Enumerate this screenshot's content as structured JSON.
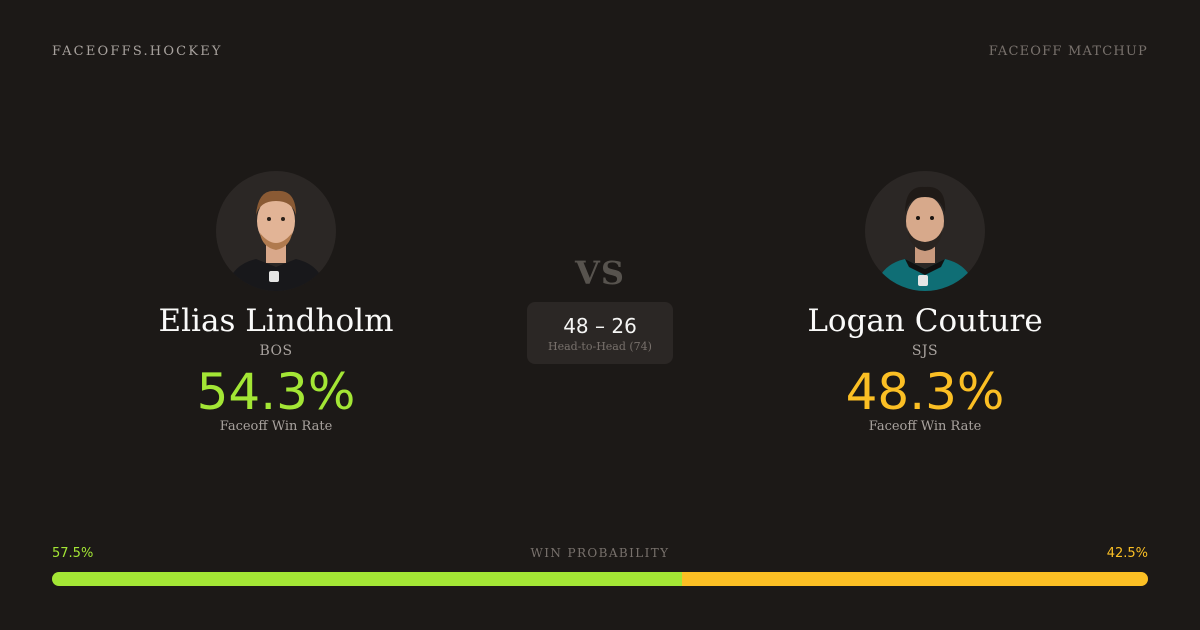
{
  "brand": "FACEOFFS.HOCKEY",
  "page_label": "FACEOFF MATCHUP",
  "vs_label": "VS",
  "player_a": {
    "name": "Elias Lindholm",
    "team": "BOS",
    "win_rate": "54.3%",
    "win_rate_label": "Faceoff Win Rate",
    "jersey_color": "#18181b",
    "accent": "#a3e635"
  },
  "player_b": {
    "name": "Logan Couture",
    "team": "SJS",
    "win_rate": "48.3%",
    "win_rate_label": "Faceoff Win Rate",
    "jersey_color": "#0f6e75",
    "accent": "#fbbf24"
  },
  "head_to_head": {
    "score": "48 – 26",
    "label": "Head-to-Head (74)"
  },
  "win_probability": {
    "title": "WIN PROBABILITY",
    "left_label": "57.5%",
    "right_label": "42.5%",
    "left_fraction": 0.575
  }
}
